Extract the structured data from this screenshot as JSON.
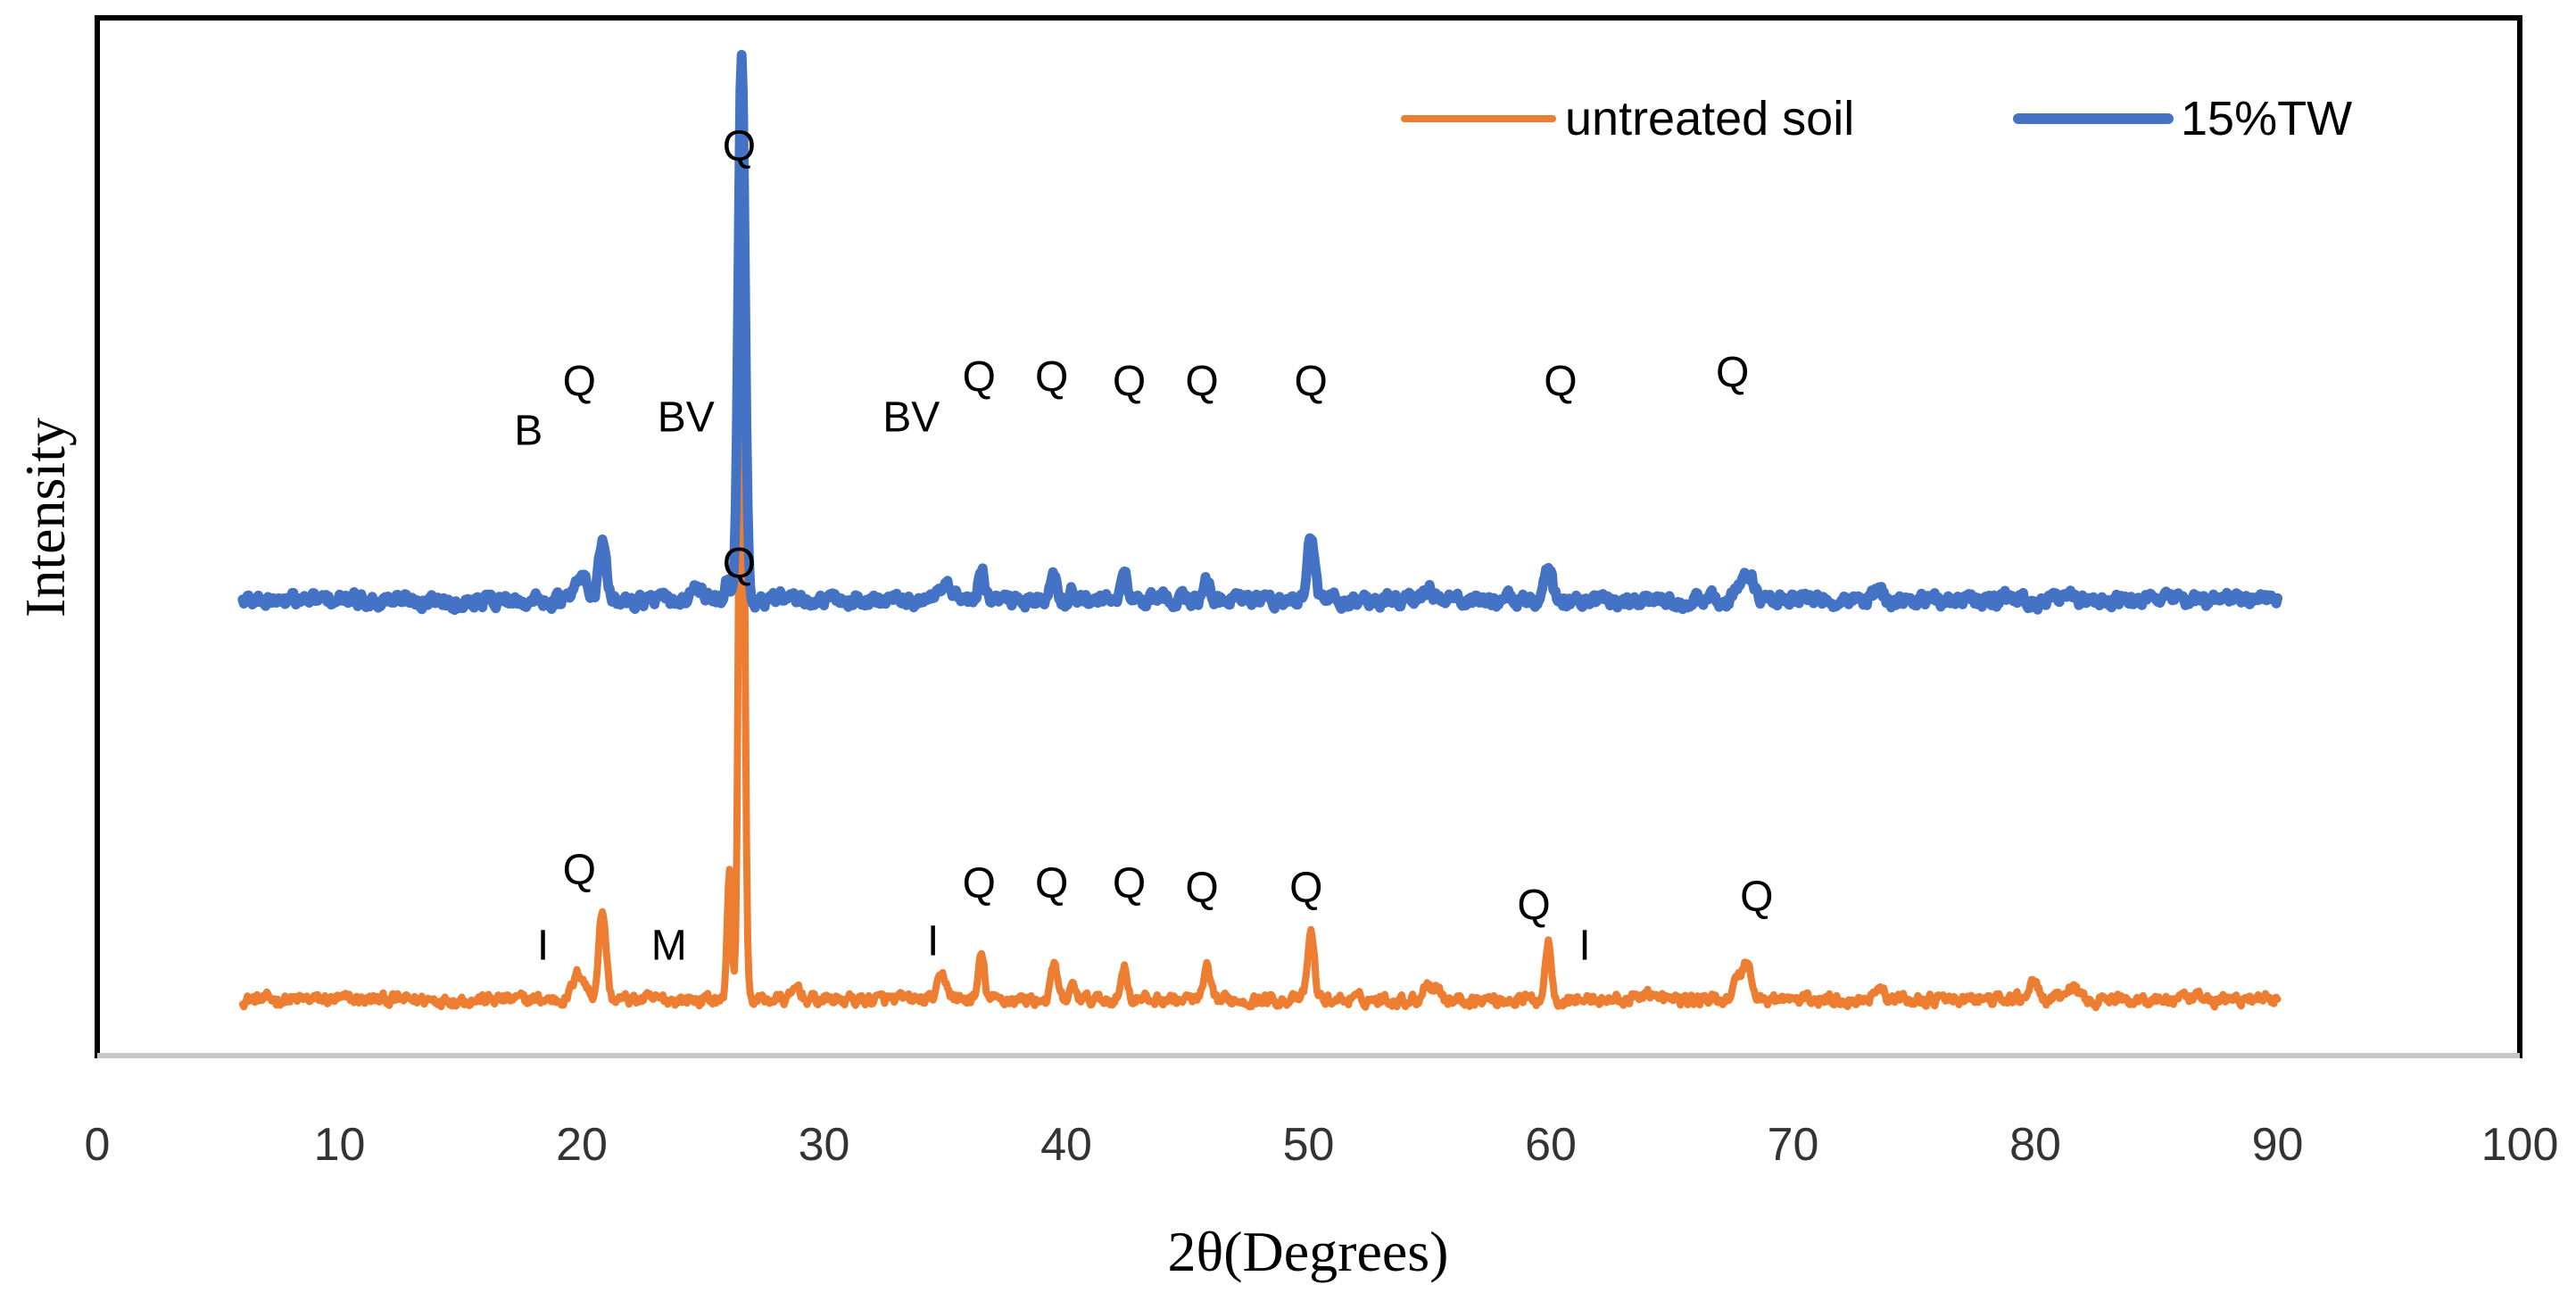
{
  "chart_data": {
    "type": "line",
    "title": "",
    "xlabel": "2θ(Degrees)",
    "ylabel": "Intensity",
    "xlim": [
      0,
      100
    ],
    "xticks": [
      "0",
      "10",
      "20",
      "30",
      "40",
      "50",
      "60",
      "70",
      "80",
      "90",
      "100"
    ],
    "grid": false,
    "legend_position": "top-right",
    "series": [
      {
        "name": "untreated soil",
        "color": "#ED7D31",
        "x_range": [
          6,
          90
        ],
        "baseline": 0.05,
        "noise": 0.012,
        "peaks": [
          {
            "x": 19.9,
            "h": 0.03,
            "w": 0.25
          },
          {
            "x": 20.85,
            "h": 0.1,
            "w": 0.15
          },
          {
            "x": 26.1,
            "h": 0.15,
            "w": 0.09
          },
          {
            "x": 26.6,
            "h": 0.93,
            "w": 0.11
          },
          {
            "x": 28.9,
            "h": 0.015,
            "w": 0.15
          },
          {
            "x": 34.9,
            "h": 0.025,
            "w": 0.2
          },
          {
            "x": 36.5,
            "h": 0.05,
            "w": 0.12
          },
          {
            "x": 39.5,
            "h": 0.04,
            "w": 0.12
          },
          {
            "x": 40.3,
            "h": 0.015,
            "w": 0.12
          },
          {
            "x": 42.4,
            "h": 0.04,
            "w": 0.12
          },
          {
            "x": 45.8,
            "h": 0.035,
            "w": 0.12
          },
          {
            "x": 50.1,
            "h": 0.075,
            "w": 0.14
          },
          {
            "x": 54.9,
            "h": 0.02,
            "w": 0.15
          },
          {
            "x": 55.3,
            "h": 0.015,
            "w": 0.15
          },
          {
            "x": 59.9,
            "h": 0.065,
            "w": 0.13
          },
          {
            "x": 64.0,
            "h": 0.01,
            "w": 0.2
          },
          {
            "x": 67.7,
            "h": 0.02,
            "w": 0.2
          },
          {
            "x": 68.1,
            "h": 0.04,
            "w": 0.18
          },
          {
            "x": 73.5,
            "h": 0.015,
            "w": 0.2
          },
          {
            "x": 79.9,
            "h": 0.02,
            "w": 0.2
          },
          {
            "x": 81.5,
            "h": 0.015,
            "w": 0.2
          }
        ]
      },
      {
        "name": "15%TW",
        "color": "#4472C4",
        "x_range": [
          6,
          90
        ],
        "baseline": 0.5,
        "noise": 0.014,
        "peaks": [
          {
            "x": 20.0,
            "h": 0.025,
            "w": 0.25
          },
          {
            "x": 20.85,
            "h": 0.065,
            "w": 0.15
          },
          {
            "x": 24.8,
            "h": 0.012,
            "w": 0.2
          },
          {
            "x": 26.0,
            "h": 0.03,
            "w": 0.1
          },
          {
            "x": 26.6,
            "h": 0.62,
            "w": 0.13
          },
          {
            "x": 35.0,
            "h": 0.015,
            "w": 0.2
          },
          {
            "x": 36.5,
            "h": 0.035,
            "w": 0.12
          },
          {
            "x": 39.5,
            "h": 0.025,
            "w": 0.14
          },
          {
            "x": 40.3,
            "h": 0.012,
            "w": 0.12
          },
          {
            "x": 42.4,
            "h": 0.025,
            "w": 0.14
          },
          {
            "x": 45.8,
            "h": 0.02,
            "w": 0.14
          },
          {
            "x": 50.1,
            "h": 0.075,
            "w": 0.14
          },
          {
            "x": 55.0,
            "h": 0.012,
            "w": 0.2
          },
          {
            "x": 59.9,
            "h": 0.04,
            "w": 0.14
          },
          {
            "x": 67.8,
            "h": 0.015,
            "w": 0.2
          },
          {
            "x": 68.2,
            "h": 0.025,
            "w": 0.18
          },
          {
            "x": 73.5,
            "h": 0.01,
            "w": 0.2
          },
          {
            "x": 81.3,
            "h": 0.01,
            "w": 0.2
          }
        ]
      }
    ],
    "annotations": [
      {
        "text": "Q",
        "x": 26.5,
        "y": 0.995
      },
      {
        "text": "Q",
        "x": 19.9,
        "y": 0.73
      },
      {
        "text": "B",
        "x": 17.8,
        "y": 0.675
      },
      {
        "text": "BV",
        "x": 24.3,
        "y": 0.69
      },
      {
        "text": "BV",
        "x": 33.6,
        "y": 0.69
      },
      {
        "text": "Q",
        "x": 36.4,
        "y": 0.735
      },
      {
        "text": "Q",
        "x": 39.4,
        "y": 0.735
      },
      {
        "text": "Q",
        "x": 42.6,
        "y": 0.73
      },
      {
        "text": "Q",
        "x": 45.6,
        "y": 0.73
      },
      {
        "text": "Q",
        "x": 50.1,
        "y": 0.73
      },
      {
        "text": "Q",
        "x": 60.4,
        "y": 0.73
      },
      {
        "text": "Q",
        "x": 67.5,
        "y": 0.74
      },
      {
        "text": "Q",
        "x": 26.5,
        "y": 0.525
      },
      {
        "text": "Q",
        "x": 19.9,
        "y": 0.18
      },
      {
        "text": "I",
        "x": 18.4,
        "y": 0.095
      },
      {
        "text": "M",
        "x": 23.6,
        "y": 0.095
      },
      {
        "text": "I",
        "x": 34.5,
        "y": 0.1
      },
      {
        "text": "Q",
        "x": 36.4,
        "y": 0.165
      },
      {
        "text": "Q",
        "x": 39.4,
        "y": 0.165
      },
      {
        "text": "Q",
        "x": 42.6,
        "y": 0.165
      },
      {
        "text": "Q",
        "x": 45.6,
        "y": 0.16
      },
      {
        "text": "Q",
        "x": 49.9,
        "y": 0.16
      },
      {
        "text": "Q",
        "x": 59.3,
        "y": 0.14
      },
      {
        "text": "I",
        "x": 61.4,
        "y": 0.095
      },
      {
        "text": "Q",
        "x": 68.5,
        "y": 0.15
      }
    ]
  }
}
